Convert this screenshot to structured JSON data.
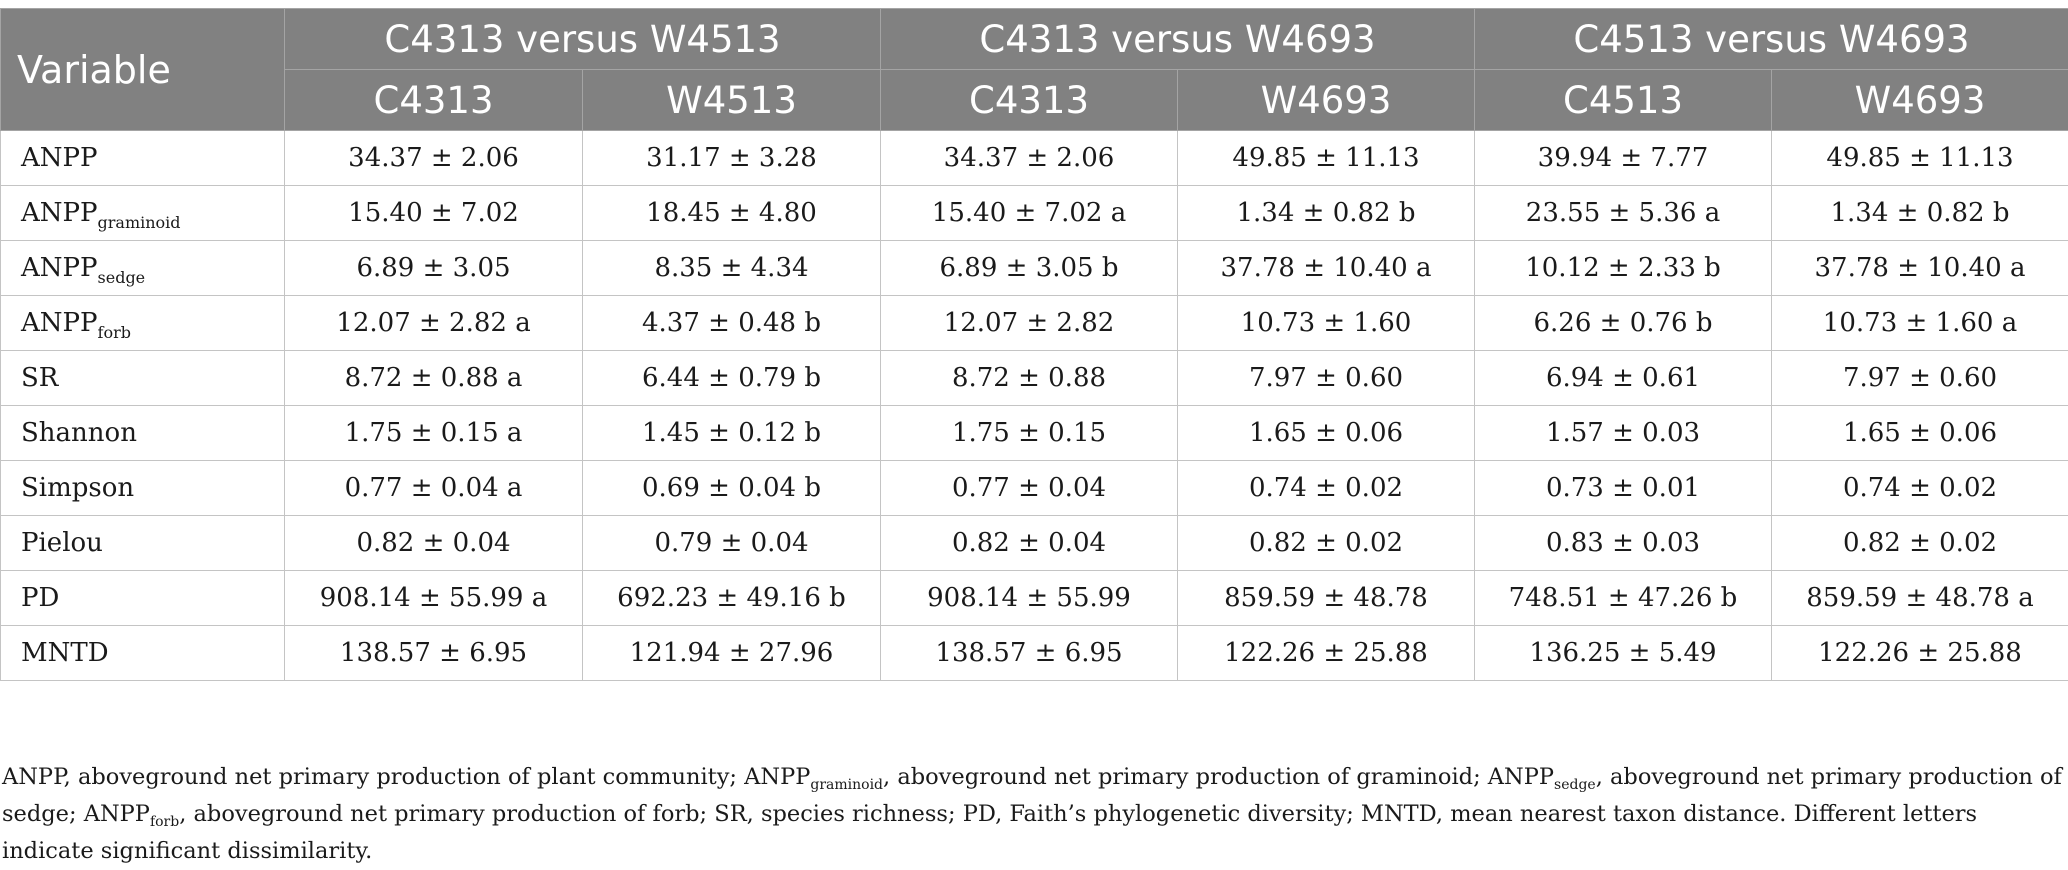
{
  "table": {
    "header": {
      "variable": "Variable",
      "groups": [
        "C4313 versus W4513",
        "C4313 versus W4693",
        "C4513 versus W4693"
      ],
      "subheaders": [
        "C4313",
        "W4513",
        "C4313",
        "W4693",
        "C4513",
        "W4693"
      ]
    },
    "rows": [
      {
        "variable": "ANPP",
        "sub": "",
        "values": [
          "34.37 ± 2.06",
          "31.17 ± 3.28",
          "34.37 ± 2.06",
          "49.85 ± 11.13",
          "39.94 ± 7.77",
          "49.85 ± 11.13"
        ]
      },
      {
        "variable": "ANPP",
        "sub": "graminoid",
        "values": [
          "15.40 ± 7.02",
          "18.45 ± 4.80",
          "15.40 ± 7.02 a",
          "1.34 ± 0.82 b",
          "23.55 ± 5.36 a",
          "1.34 ± 0.82 b"
        ]
      },
      {
        "variable": "ANPP",
        "sub": "sedge",
        "values": [
          "6.89 ± 3.05",
          "8.35 ± 4.34",
          "6.89 ± 3.05 b",
          "37.78 ± 10.40 a",
          "10.12 ± 2.33 b",
          "37.78 ± 10.40 a"
        ]
      },
      {
        "variable": "ANPP",
        "sub": "forb",
        "values": [
          "12.07 ± 2.82 a",
          "4.37 ± 0.48 b",
          "12.07 ± 2.82",
          "10.73 ± 1.60",
          "6.26 ± 0.76 b",
          "10.73 ± 1.60 a"
        ]
      },
      {
        "variable": "SR",
        "sub": "",
        "values": [
          "8.72 ± 0.88 a",
          "6.44 ± 0.79 b",
          "8.72 ± 0.88",
          "7.97 ± 0.60",
          "6.94 ± 0.61",
          "7.97 ± 0.60"
        ]
      },
      {
        "variable": "Shannon",
        "sub": "",
        "values": [
          "1.75 ± 0.15 a",
          "1.45 ± 0.12 b",
          "1.75 ± 0.15",
          "1.65 ± 0.06",
          "1.57 ± 0.03",
          "1.65 ± 0.06"
        ]
      },
      {
        "variable": "Simpson",
        "sub": "",
        "values": [
          "0.77 ± 0.04 a",
          "0.69 ± 0.04 b",
          "0.77 ± 0.04",
          "0.74 ± 0.02",
          "0.73 ± 0.01",
          "0.74 ± 0.02"
        ]
      },
      {
        "variable": "Pielou",
        "sub": "",
        "values": [
          "0.82 ± 0.04",
          "0.79 ± 0.04",
          "0.82 ± 0.04",
          "0.82 ± 0.02",
          "0.83 ± 0.03",
          "0.82 ± 0.02"
        ]
      },
      {
        "variable": "PD",
        "sub": "",
        "values": [
          "908.14 ± 55.99 a",
          "692.23 ± 49.16 b",
          "908.14 ± 55.99",
          "859.59 ± 48.78",
          "748.51 ± 47.26 b",
          "859.59 ± 48.78 a"
        ]
      },
      {
        "variable": "MNTD",
        "sub": "",
        "values": [
          "138.57 ± 6.95",
          "121.94 ± 27.96",
          "138.57 ± 6.95",
          "122.26 ± 25.88",
          "136.25 ± 5.49",
          "122.26 ± 25.88"
        ]
      }
    ]
  },
  "footnote": {
    "p1": "ANPP, aboveground net primary production of plant community; ANPP",
    "sub1": "graminoid",
    "p2": ", aboveground net primary production of graminoid; ANPP",
    "sub2": "sedge",
    "p3": ", aboveground net primary production of sedge; ANPP",
    "sub3": "forb",
    "p4": ", aboveground net primary production of forb; SR, species richness; PD, Faith’s phylogenetic diversity; MNTD, mean nearest taxon distance. Different letters indicate significant dissimilarity."
  }
}
